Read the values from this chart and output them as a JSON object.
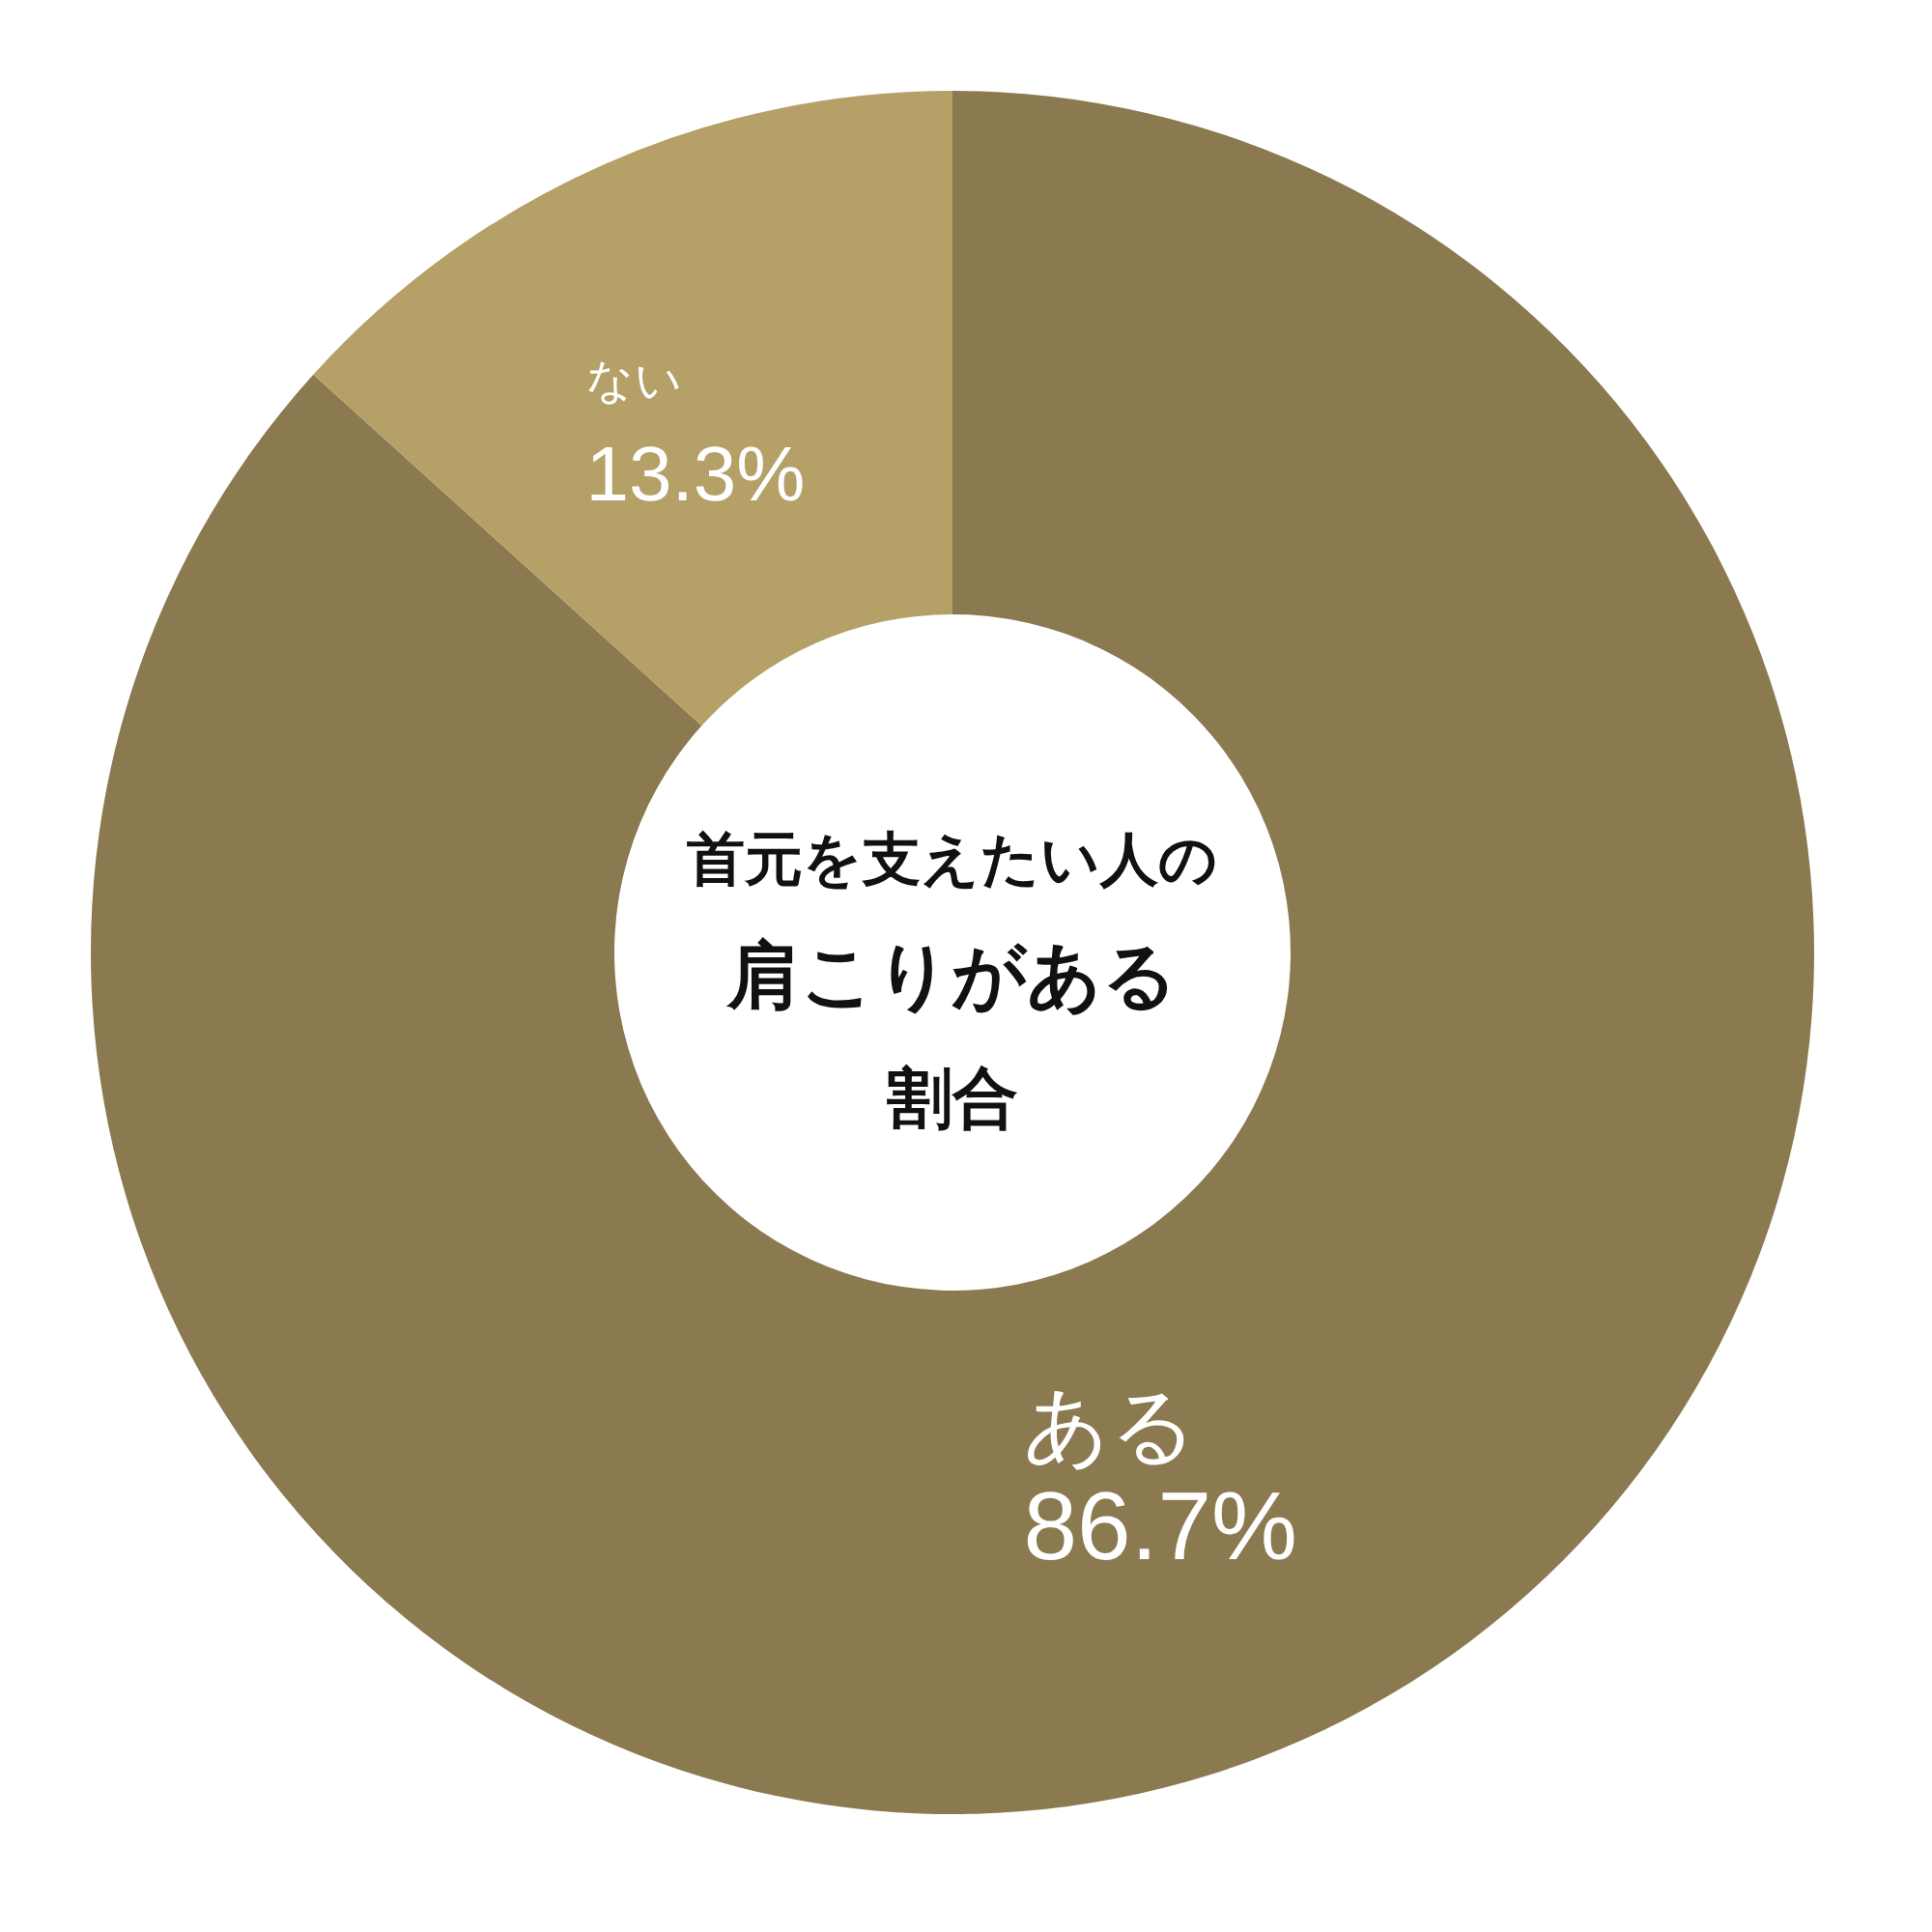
{
  "chart_data": {
    "type": "donut",
    "title": "首元を支えたい人の肩こりがある割合",
    "categories": [
      "ある",
      "ない"
    ],
    "values": [
      86.7,
      13.3
    ],
    "colors": [
      "#8b7a50",
      "#b5a068"
    ],
    "value_labels": [
      "86.7%",
      "13.3%"
    ]
  }
}
